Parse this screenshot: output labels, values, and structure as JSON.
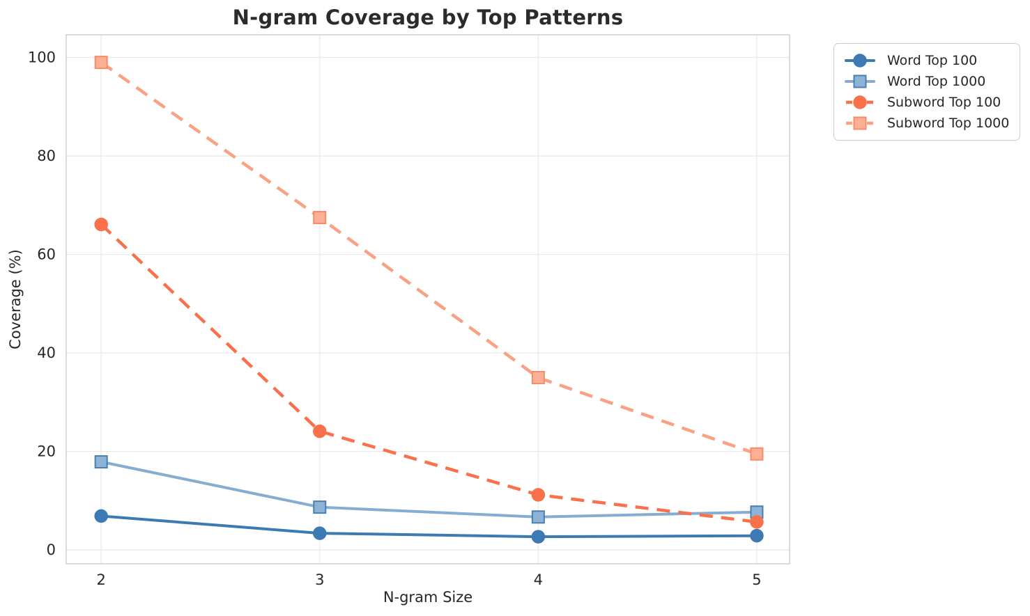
{
  "chart_data": {
    "type": "line",
    "title": "N-gram Coverage by Top Patterns",
    "xlabel": "N-gram Size",
    "ylabel": "Coverage (%)",
    "x": [
      2,
      3,
      4,
      5
    ],
    "x_ticks": [
      "2",
      "3",
      "4",
      "5"
    ],
    "y_ticks": [
      "0",
      "20",
      "40",
      "60",
      "80",
      "100"
    ],
    "y_tick_values": [
      0,
      20,
      40,
      60,
      80,
      100
    ],
    "xlim": [
      1.84,
      5.15
    ],
    "ylim": [
      -2.8,
      104.6
    ],
    "grid": true,
    "legend_position": "upper right, outside plot area",
    "series": [
      {
        "name": "Word Top 100",
        "values": [
          6.9,
          3.4,
          2.7,
          2.9
        ],
        "color": "#3d79b2",
        "marker": "circle",
        "marker_fill": "#3d79b2",
        "marker_edge": "#3d79b2",
        "line_style": "solid"
      },
      {
        "name": "Word Top 1000",
        "values": [
          17.9,
          8.7,
          6.7,
          7.7
        ],
        "color": "#85add2",
        "marker": "square",
        "marker_fill": "#8db3d6",
        "marker_edge": "#4a7fb0",
        "line_style": "solid"
      },
      {
        "name": "Subword Top 100",
        "values": [
          66.1,
          24.1,
          11.2,
          5.7
        ],
        "color": "#f8714b",
        "marker": "circle",
        "marker_fill": "#f8714b",
        "marker_edge": "#f8714b",
        "line_style": "dashed"
      },
      {
        "name": "Subword Top 1000",
        "values": [
          99.0,
          67.5,
          35.0,
          19.5
        ],
        "color": "#fba183",
        "marker": "square",
        "marker_fill": "#fcb096",
        "marker_edge": "#f98b63",
        "line_style": "dashed"
      }
    ],
    "style": {
      "grid_color": "#e9e9e9",
      "spine_color": "#cfcfcf",
      "tick_label_color": "#262626",
      "title_color": "#2b2b2b",
      "background": "#ffffff"
    }
  }
}
